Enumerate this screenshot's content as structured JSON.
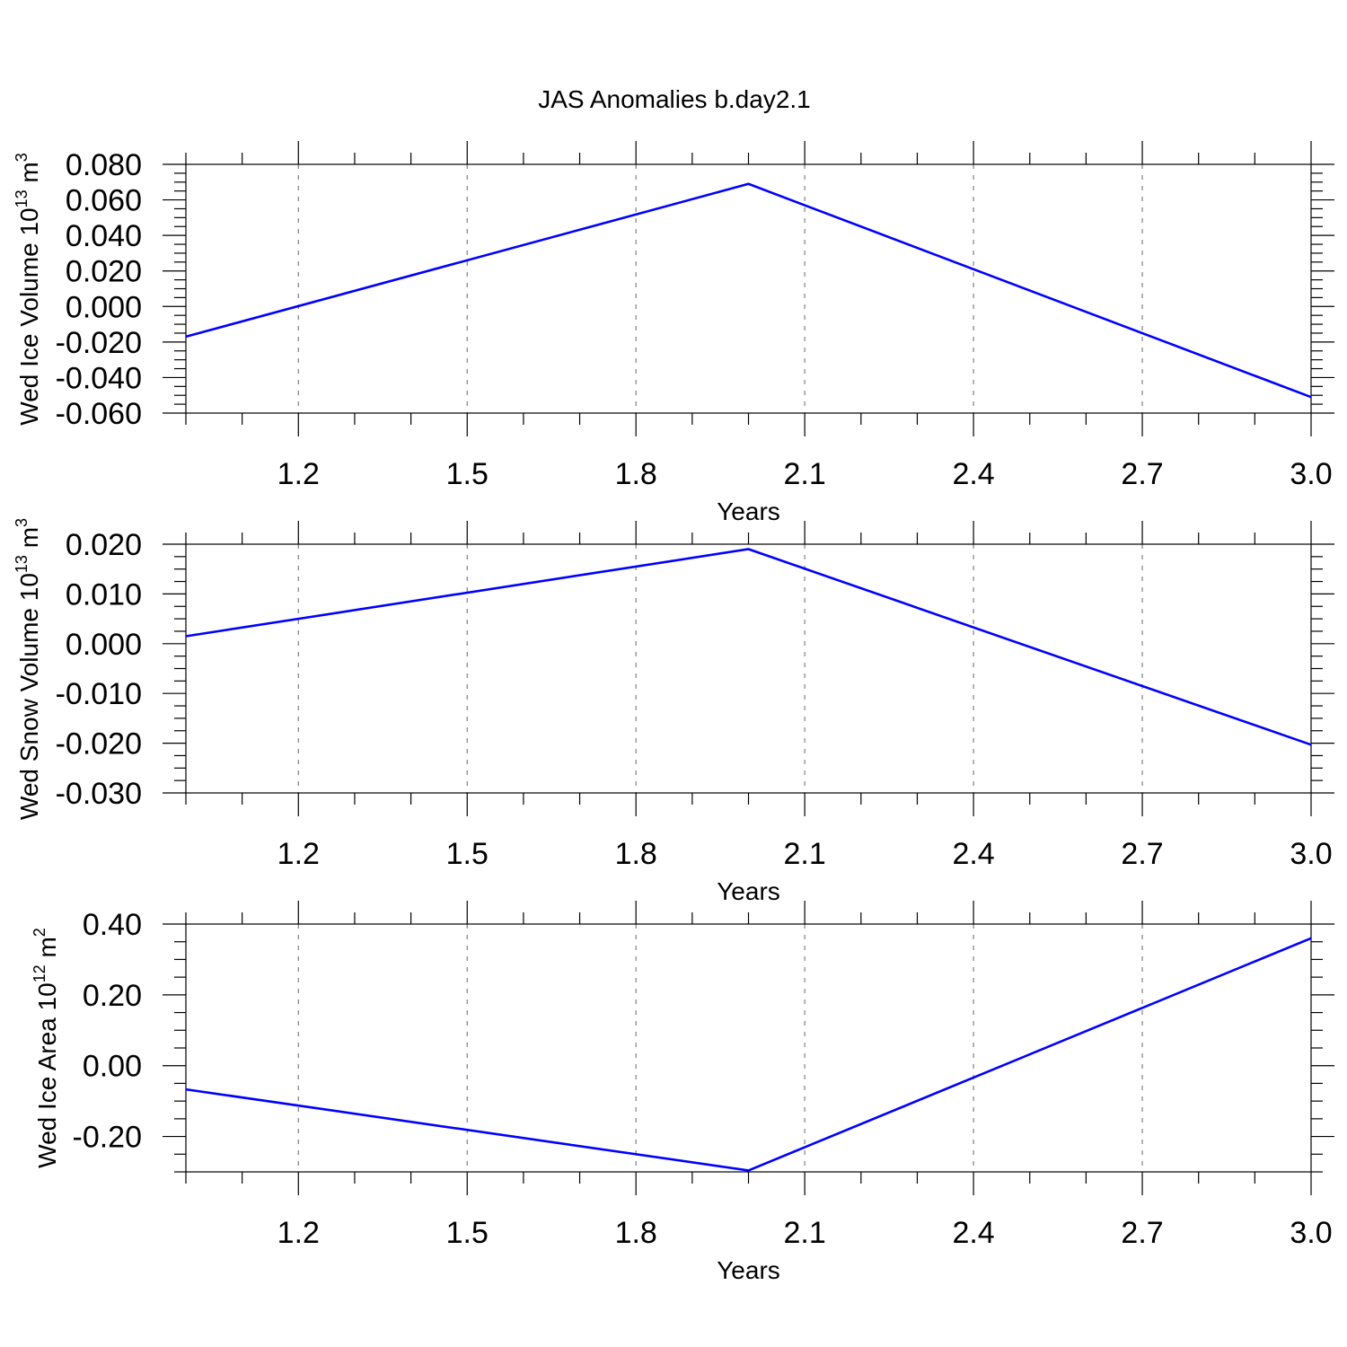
{
  "title": "JAS Anomalies b.day2.1",
  "colors": {
    "series": "#0000ff",
    "grid": "#808080",
    "axis": "#000000"
  },
  "chart_data": [
    {
      "type": "line",
      "ylabel": {
        "main": "Wed Ice Volume 10",
        "exp": "13",
        "unit": " m",
        "unit_exp": "3"
      },
      "xlabel": "Years",
      "xlim": [
        1.0,
        3.0
      ],
      "ylim": [
        -0.06,
        0.08
      ],
      "xticks": [
        1.2,
        1.5,
        1.8,
        2.1,
        2.4,
        2.7,
        3.0
      ],
      "xtick_labels": [
        "1.2",
        "1.5",
        "1.8",
        "2.1",
        "2.4",
        "2.7",
        "3.0"
      ],
      "yticks": [
        0.08,
        0.06,
        0.04,
        0.02,
        0.0,
        -0.02,
        -0.04,
        -0.06
      ],
      "ytick_labels": [
        "0.080",
        "0.060",
        "0.040",
        "0.020",
        "0.000",
        "-0.020",
        "-0.040",
        "-0.060"
      ],
      "grid": "x-dashed",
      "series": [
        {
          "x": [
            1.0,
            2.0,
            3.0
          ],
          "y": [
            -0.017,
            0.069,
            -0.051
          ]
        }
      ]
    },
    {
      "type": "line",
      "ylabel": {
        "main": "Wed Snow Volume 10",
        "exp": "13",
        "unit": " m",
        "unit_exp": "3"
      },
      "xlabel": "Years",
      "xlim": [
        1.0,
        3.0
      ],
      "ylim": [
        -0.03,
        0.02
      ],
      "xticks": [
        1.2,
        1.5,
        1.8,
        2.1,
        2.4,
        2.7,
        3.0
      ],
      "xtick_labels": [
        "1.2",
        "1.5",
        "1.8",
        "2.1",
        "2.4",
        "2.7",
        "3.0"
      ],
      "yticks": [
        0.02,
        0.01,
        0.0,
        -0.01,
        -0.02,
        -0.03
      ],
      "ytick_labels": [
        "0.020",
        "0.010",
        "0.000",
        "-0.010",
        "-0.020",
        "-0.030"
      ],
      "grid": "x-dashed",
      "series": [
        {
          "x": [
            1.0,
            2.0,
            3.0
          ],
          "y": [
            0.0015,
            0.019,
            -0.0203
          ]
        }
      ]
    },
    {
      "type": "line",
      "ylabel": {
        "main": "Wed Ice Area 10",
        "exp": "12",
        "unit": " m",
        "unit_exp": "2"
      },
      "xlabel": "Years",
      "xlim": [
        1.0,
        3.0
      ],
      "ylim": [
        -0.3,
        0.4
      ],
      "xticks": [
        1.2,
        1.5,
        1.8,
        2.1,
        2.4,
        2.7,
        3.0
      ],
      "xtick_labels": [
        "1.2",
        "1.5",
        "1.8",
        "2.1",
        "2.4",
        "2.7",
        "3.0"
      ],
      "yticks": [
        0.4,
        0.2,
        0.0,
        -0.2
      ],
      "ytick_labels": [
        "0.40",
        "0.20",
        "0.00",
        "-0.20"
      ],
      "grid": "x-dashed",
      "series": [
        {
          "x": [
            1.0,
            2.0,
            3.0
          ],
          "y": [
            -0.067,
            -0.296,
            0.36
          ]
        }
      ]
    }
  ]
}
